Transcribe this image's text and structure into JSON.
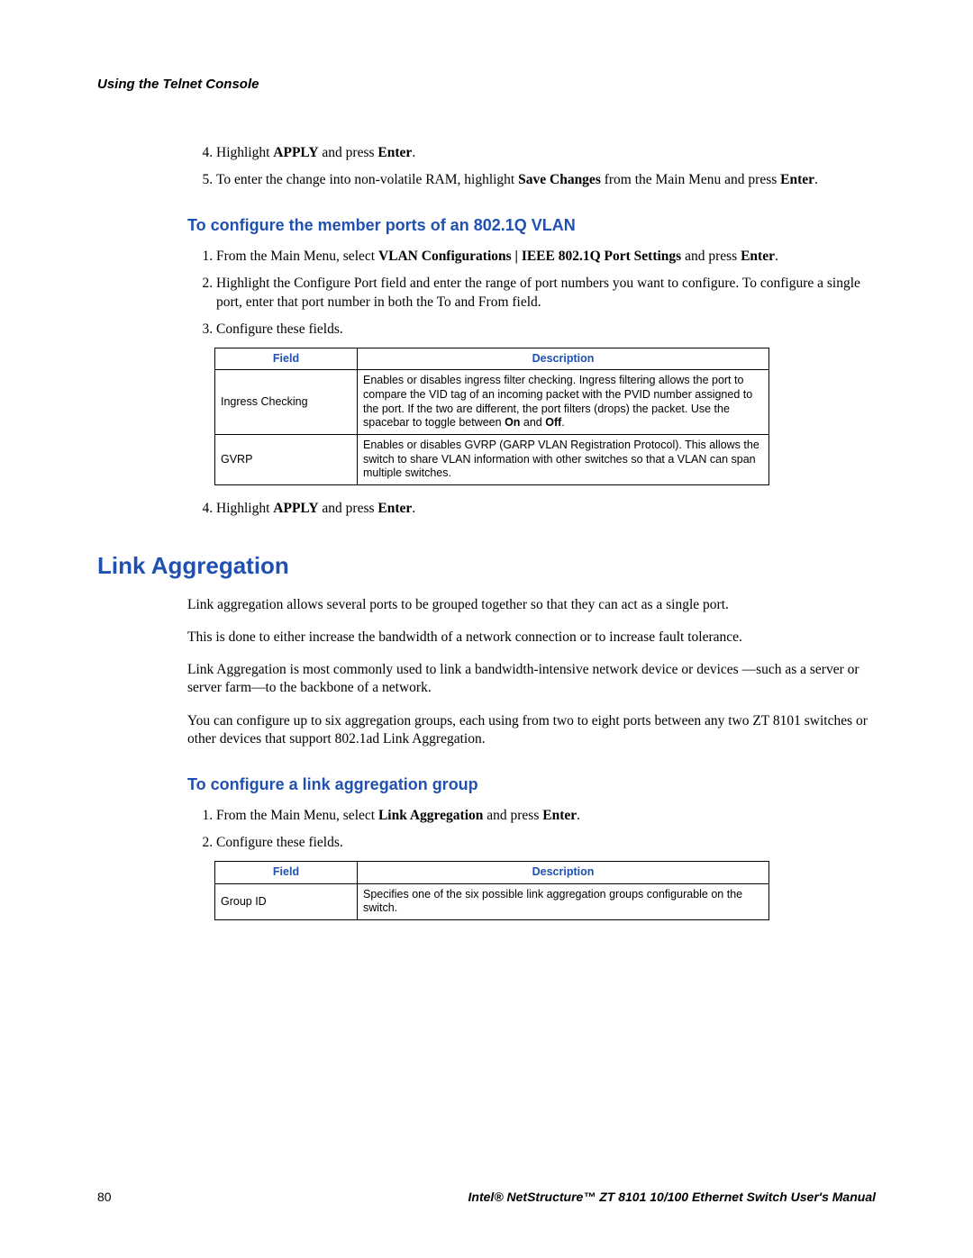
{
  "colors": {
    "heading_blue": "#2050b0",
    "text": "#000000",
    "background": "#ffffff",
    "border": "#000000"
  },
  "typography": {
    "body_family": "Times New Roman",
    "body_size_pt": 12,
    "sans_family": "Arial",
    "h2_size_pt": 20,
    "h3_size_pt": 14,
    "table_size_pt": 10
  },
  "header": {
    "section_title": "Using the Telnet Console"
  },
  "top_steps": {
    "start": 4,
    "items": [
      {
        "prefix": "Highlight ",
        "bold1": "APPLY",
        "mid": " and press ",
        "bold2": "Enter",
        "suffix": "."
      },
      {
        "prefix": "To enter the change into non-volatile RAM, highlight ",
        "bold1": "Save Changes",
        "mid": " from the Main Menu and press ",
        "bold2": "Enter",
        "suffix": "."
      }
    ]
  },
  "vlan_section": {
    "heading": "To configure the member ports of an 802.1Q VLAN",
    "steps_before_table": [
      {
        "prefix": "From the Main Menu, select ",
        "bold1": "VLAN Configurations | IEEE 802.1Q Port Settings",
        "mid": " and press ",
        "bold2": "Enter",
        "suffix": "."
      },
      {
        "text": "Highlight the Configure Port field and enter the range of port numbers you want to configure. To configure a single port, enter that port number in both the To and From field."
      },
      {
        "text": "Configure these fields."
      }
    ],
    "table": {
      "col_field": "Field",
      "col_desc": "Description",
      "rows": [
        {
          "field": "Ingress Checking",
          "desc_prefix": "Enables or disables ingress filter checking. Ingress filtering allows the port to compare the VID tag of an incoming packet with the PVID number assigned to the port. If the two are different, the port filters (drops) the packet. Use the spacebar to toggle between ",
          "desc_b1": "On",
          "desc_mid": " and ",
          "desc_b2": "Off",
          "desc_suffix": "."
        },
        {
          "field": "GVRP",
          "desc": "Enables or disables GVRP (GARP VLAN Registration Protocol). This allows the switch to share VLAN information with other switches so that a VLAN can span multiple switches."
        }
      ]
    },
    "step_after_table": {
      "prefix": "Highlight ",
      "bold1": "APPLY",
      "mid": " and press ",
      "bold2": "Enter",
      "suffix": "."
    }
  },
  "link_agg": {
    "heading": "Link Aggregation",
    "paras": [
      "Link aggregation allows several ports to be grouped together so that they can act as a single port.",
      "This is done to either increase the bandwidth of a network connection or to increase fault tolerance.",
      "Link Aggregation is most commonly used to link a bandwidth-intensive network device or devices —such as a server or server farm—to the backbone of a network.",
      "You can configure up to six aggregation groups, each using from two to eight ports between any two ZT 8101 switches or other devices that support 802.1ad Link Aggregation."
    ],
    "sub_heading": "To configure a link aggregation group",
    "steps": [
      {
        "prefix": "From the Main Menu, select ",
        "bold1": "Link Aggregation",
        "mid": " and press ",
        "bold2": "Enter",
        "suffix": "."
      },
      {
        "text": "Configure these fields."
      }
    ],
    "table": {
      "col_field": "Field",
      "col_desc": "Description",
      "rows": [
        {
          "field": "Group ID",
          "desc": "Specifies one of the six possible link aggregation groups configurable on the switch."
        }
      ]
    }
  },
  "footer": {
    "page": "80",
    "manual": "Intel® NetStructure™ ZT 8101 10/100 Ethernet Switch User's Manual"
  }
}
